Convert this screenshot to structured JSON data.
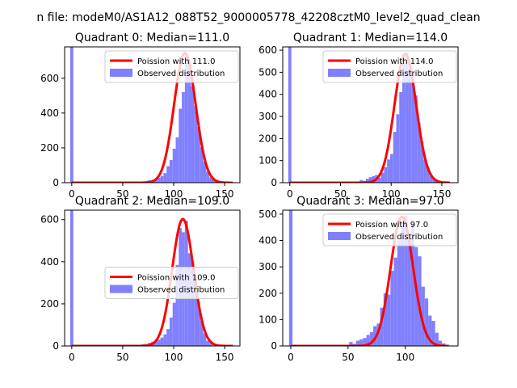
{
  "figure": {
    "suptitle": "n file: modeM0/AS1A12_088T52_9000005778_42208cztM0_level2_quad_clean"
  },
  "colors": {
    "fit": "#ff0000",
    "hist": "#8080ff",
    "axes": "#000000"
  },
  "chart_data": [
    {
      "type": "bar+line",
      "title": "Quadrant 0: Median=111.0",
      "median": 111.0,
      "xlim": [
        -7,
        165
      ],
      "ylim": [
        0,
        780
      ],
      "xticks": [
        0,
        50,
        100,
        150
      ],
      "yticks": [
        0,
        200,
        400,
        600
      ],
      "legend": {
        "placement": "upper right",
        "fit_label": "Poission with 111.0",
        "hist_label": "Observed distribution"
      },
      "bin_width": 3,
      "zero_bin_value": 780,
      "bins": [
        [
          72,
          10
        ],
        [
          75,
          14
        ],
        [
          78,
          11
        ],
        [
          81,
          20
        ],
        [
          84,
          28
        ],
        [
          87,
          38
        ],
        [
          90,
          55
        ],
        [
          93,
          95
        ],
        [
          96,
          130
        ],
        [
          99,
          195
        ],
        [
          102,
          260
        ],
        [
          105,
          425
        ],
        [
          108,
          520
        ],
        [
          111,
          740
        ],
        [
          114,
          700
        ],
        [
          117,
          555
        ],
        [
          120,
          440
        ],
        [
          123,
          320
        ],
        [
          126,
          205
        ],
        [
          129,
          120
        ],
        [
          132,
          65
        ],
        [
          135,
          30
        ],
        [
          138,
          20
        ],
        [
          141,
          8
        ],
        [
          144,
          5
        ]
      ],
      "fit": {
        "mu": 111.0,
        "x_range": [
          0,
          158
        ],
        "peak": 745
      }
    },
    {
      "type": "bar+line",
      "title": "Quadrant 1: Median=114.0",
      "median": 114.0,
      "xlim": [
        -7,
        166
      ],
      "ylim": [
        0,
        615
      ],
      "xticks": [
        0,
        50,
        100,
        150
      ],
      "yticks": [
        0,
        100,
        200,
        300,
        400,
        500,
        600
      ],
      "legend": {
        "placement": "upper right",
        "fit_label": "Poission with 114.0",
        "hist_label": "Observed distribution"
      },
      "bin_width": 3,
      "zero_bin_value": 615,
      "bins": [
        [
          63,
          5
        ],
        [
          66,
          3
        ],
        [
          69,
          12
        ],
        [
          72,
          8
        ],
        [
          75,
          18
        ],
        [
          78,
          25
        ],
        [
          81,
          30
        ],
        [
          84,
          35
        ],
        [
          87,
          22
        ],
        [
          90,
          45
        ],
        [
          93,
          70
        ],
        [
          96,
          105
        ],
        [
          99,
          130
        ],
        [
          102,
          230
        ],
        [
          105,
          310
        ],
        [
          108,
          410
        ],
        [
          111,
          540
        ],
        [
          114,
          590
        ],
        [
          117,
          520
        ],
        [
          120,
          470
        ],
        [
          123,
          395
        ],
        [
          126,
          270
        ],
        [
          129,
          185
        ],
        [
          132,
          105
        ],
        [
          135,
          65
        ],
        [
          138,
          30
        ],
        [
          141,
          15
        ],
        [
          144,
          8
        ]
      ],
      "fit": {
        "mu": 114.0,
        "x_range": [
          0,
          158
        ],
        "peak": 583
      }
    },
    {
      "type": "bar+line",
      "title": "Quadrant 2: Median=109.0",
      "median": 109.0,
      "xlim": [
        -7,
        165
      ],
      "ylim": [
        0,
        645
      ],
      "xticks": [
        0,
        50,
        100,
        150
      ],
      "yticks": [
        0,
        200,
        400,
        600
      ],
      "legend": {
        "placement": "center right",
        "fit_label": "Poission with 109.0",
        "hist_label": "Observed distribution"
      },
      "bin_width": 3,
      "zero_bin_value": 645,
      "bins": [
        [
          66,
          5
        ],
        [
          69,
          8
        ],
        [
          72,
          10
        ],
        [
          75,
          15
        ],
        [
          78,
          20
        ],
        [
          81,
          28
        ],
        [
          84,
          30
        ],
        [
          87,
          40
        ],
        [
          90,
          55
        ],
        [
          93,
          80
        ],
        [
          96,
          135
        ],
        [
          99,
          205
        ],
        [
          102,
          385
        ],
        [
          105,
          560
        ],
        [
          108,
          540
        ],
        [
          111,
          595
        ],
        [
          114,
          440
        ],
        [
          117,
          400
        ],
        [
          120,
          305
        ],
        [
          123,
          210
        ],
        [
          126,
          120
        ],
        [
          129,
          60
        ],
        [
          132,
          25
        ],
        [
          135,
          15
        ]
      ],
      "fit": {
        "mu": 109.0,
        "x_range": [
          0,
          158
        ],
        "peak": 603
      }
    },
    {
      "type": "bar+line",
      "title": "Quadrant 3: Median=97.0",
      "median": 97.0,
      "xlim": [
        -7,
        146
      ],
      "ylim": [
        0,
        515
      ],
      "xticks": [
        0,
        50,
        100
      ],
      "yticks": [
        0,
        100,
        200,
        300,
        400,
        500
      ],
      "legend": {
        "placement": "upper right",
        "fit_label": "Poission with 97.0",
        "hist_label": "Observed distribution"
      },
      "bin_width": 3,
      "zero_bin_value": 515,
      "bins": [
        [
          3,
          5
        ],
        [
          9,
          3
        ],
        [
          18,
          3
        ],
        [
          24,
          4
        ],
        [
          30,
          3
        ],
        [
          51,
          15
        ],
        [
          54,
          8
        ],
        [
          57,
          20
        ],
        [
          60,
          25
        ],
        [
          63,
          30
        ],
        [
          66,
          42
        ],
        [
          69,
          52
        ],
        [
          72,
          75
        ],
        [
          75,
          85
        ],
        [
          78,
          145
        ],
        [
          81,
          200
        ],
        [
          84,
          195
        ],
        [
          87,
          285
        ],
        [
          90,
          335
        ],
        [
          93,
          400
        ],
        [
          96,
          470
        ],
        [
          99,
          495
        ],
        [
          102,
          420
        ],
        [
          105,
          470
        ],
        [
          108,
          375
        ],
        [
          111,
          340
        ],
        [
          114,
          225
        ],
        [
          117,
          180
        ],
        [
          120,
          115
        ],
        [
          123,
          95
        ],
        [
          126,
          50
        ],
        [
          129,
          20
        ],
        [
          132,
          10
        ]
      ],
      "fit": {
        "mu": 97.0,
        "x_range": [
          0,
          138
        ],
        "peak": 490
      }
    }
  ]
}
